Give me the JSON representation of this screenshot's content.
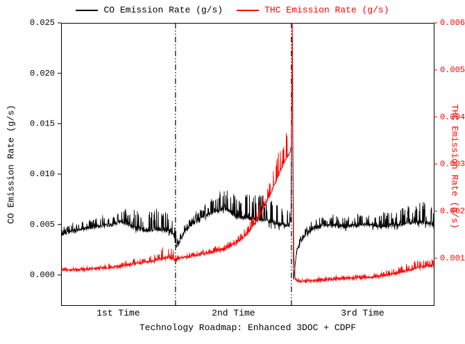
{
  "legend": {
    "items": [
      {
        "label": "CO Emission Rate (g/s)",
        "color": "#000000"
      },
      {
        "label": "THC Emission Rate (g/s)",
        "color": "#ff0000"
      }
    ]
  },
  "chart_data": {
    "type": "line",
    "title": "",
    "xlabel": "Technology Roadmap: Enhanced 3DOC + CDPF",
    "background": "#ffffff",
    "grid": false,
    "legend_position": "top-center",
    "x_axis": {
      "range": [
        0,
        1
      ],
      "segment_labels": [
        "1st Time",
        "2nd Time",
        "3rd Time"
      ],
      "separators_x": [
        0.307,
        0.618
      ],
      "separator_style": "dash-dot-dot"
    },
    "y_left": {
      "title": "CO Emission Rate (g/s)",
      "color": "#000000",
      "range": [
        -0.003,
        0.025
      ],
      "ticks": [
        {
          "value": 0.0,
          "label": "0.000"
        },
        {
          "value": 0.005,
          "label": "0.005"
        },
        {
          "value": 0.01,
          "label": "0.010"
        },
        {
          "value": 0.015,
          "label": "0.015"
        },
        {
          "value": 0.02,
          "label": "0.020"
        },
        {
          "value": 0.025,
          "label": "0.025"
        }
      ]
    },
    "y_right": {
      "title": "THC Emission Rate (g/s)",
      "color": "#ff0000",
      "range": [
        0,
        0.006
      ],
      "ticks": [
        {
          "value": 0.001,
          "label": "0.001"
        },
        {
          "value": 0.002,
          "label": "0.002"
        },
        {
          "value": 0.003,
          "label": "0.003"
        },
        {
          "value": 0.004,
          "label": "0.004"
        },
        {
          "value": 0.005,
          "label": "0.005"
        },
        {
          "value": 0.006,
          "label": "0.006"
        }
      ]
    },
    "series": [
      {
        "name": "CO Emission Rate (g/s)",
        "axis": "left",
        "color": "#000000",
        "line_width": 0.9,
        "seed": 7,
        "samples": 1500,
        "noise_amp": 0.00018,
        "spike_prob": 0.2,
        "down_spike_prob": 0.04,
        "down_spike_frac": 0.35,
        "trend": [
          [
            0,
            0.004
          ],
          [
            0.02,
            0.0042
          ],
          [
            0.05,
            0.0045
          ],
          [
            0.08,
            0.0047
          ],
          [
            0.11,
            0.0049
          ],
          [
            0.14,
            0.005
          ],
          [
            0.16,
            0.0053
          ],
          [
            0.175,
            0.0051
          ],
          [
            0.2,
            0.0046
          ],
          [
            0.23,
            0.0044
          ],
          [
            0.26,
            0.0045
          ],
          [
            0.29,
            0.0044
          ],
          [
            0.302,
            0.004
          ],
          [
            0.31,
            0.0029
          ],
          [
            0.318,
            0.0033
          ],
          [
            0.33,
            0.0042
          ],
          [
            0.35,
            0.005
          ],
          [
            0.37,
            0.0055
          ],
          [
            0.395,
            0.006
          ],
          [
            0.42,
            0.0064
          ],
          [
            0.44,
            0.0066
          ],
          [
            0.455,
            0.0062
          ],
          [
            0.47,
            0.0058
          ],
          [
            0.49,
            0.0057
          ],
          [
            0.52,
            0.0056
          ],
          [
            0.55,
            0.0054
          ],
          [
            0.58,
            0.0051
          ],
          [
            0.6,
            0.0049
          ],
          [
            0.612,
            0.005
          ],
          [
            0.617,
            0.0055
          ],
          [
            0.6205,
            0.024
          ],
          [
            0.6235,
            -0.0008
          ],
          [
            0.627,
            0.0005
          ],
          [
            0.632,
            0.0022
          ],
          [
            0.64,
            0.003
          ],
          [
            0.655,
            0.004
          ],
          [
            0.675,
            0.0046
          ],
          [
            0.7,
            0.0049
          ],
          [
            0.73,
            0.005
          ],
          [
            0.76,
            0.0048
          ],
          [
            0.79,
            0.0049
          ],
          [
            0.82,
            0.005
          ],
          [
            0.85,
            0.0048
          ],
          [
            0.88,
            0.0049
          ],
          [
            0.91,
            0.005
          ],
          [
            0.94,
            0.0052
          ],
          [
            0.965,
            0.0053
          ],
          [
            1,
            0.005
          ]
        ],
        "spike_amp": [
          [
            0,
            0.0006
          ],
          [
            0.05,
            0.0008
          ],
          [
            0.1,
            0.0009
          ],
          [
            0.15,
            0.0011
          ],
          [
            0.19,
            0.0016
          ],
          [
            0.23,
            0.002
          ],
          [
            0.27,
            0.0021
          ],
          [
            0.3,
            0.002
          ],
          [
            0.315,
            0.0006
          ],
          [
            0.34,
            0.0007
          ],
          [
            0.38,
            0.0009
          ],
          [
            0.42,
            0.0016
          ],
          [
            0.46,
            0.002
          ],
          [
            0.5,
            0.0023
          ],
          [
            0.54,
            0.0023
          ],
          [
            0.58,
            0.0021
          ],
          [
            0.61,
            0.0018
          ],
          [
            0.625,
            0.0004
          ],
          [
            0.65,
            0.0006
          ],
          [
            0.7,
            0.0008
          ],
          [
            0.75,
            0.001
          ],
          [
            0.8,
            0.0012
          ],
          [
            0.85,
            0.0013
          ],
          [
            0.9,
            0.0014
          ],
          [
            0.94,
            0.0018
          ],
          [
            0.97,
            0.002
          ],
          [
            1,
            0.0014
          ]
        ]
      },
      {
        "name": "THC Emission Rate (g/s)",
        "axis": "right",
        "color": "#ff0000",
        "line_width": 0.9,
        "seed": 13,
        "samples": 1500,
        "noise_amp": 2.5e-05,
        "spike_prob": 0.2,
        "down_spike_prob": 0.02,
        "down_spike_frac": 0.3,
        "trend": [
          [
            0,
            0.00075
          ],
          [
            0.05,
            0.00075
          ],
          [
            0.1,
            0.00078
          ],
          [
            0.15,
            0.00082
          ],
          [
            0.2,
            0.00088
          ],
          [
            0.25,
            0.00095
          ],
          [
            0.29,
            0.00102
          ],
          [
            0.305,
            0.00096
          ],
          [
            0.32,
            0.001
          ],
          [
            0.36,
            0.00105
          ],
          [
            0.4,
            0.00112
          ],
          [
            0.44,
            0.0012
          ],
          [
            0.47,
            0.00132
          ],
          [
            0.5,
            0.00152
          ],
          [
            0.53,
            0.00185
          ],
          [
            0.555,
            0.00225
          ],
          [
            0.58,
            0.0027
          ],
          [
            0.6,
            0.00305
          ],
          [
            0.614,
            0.00325
          ],
          [
            0.618,
            0.0034
          ],
          [
            0.6205,
            0.0059
          ],
          [
            0.624,
            0.0012
          ],
          [
            0.628,
            0.00055
          ],
          [
            0.64,
            0.0005
          ],
          [
            0.68,
            0.00052
          ],
          [
            0.72,
            0.00055
          ],
          [
            0.76,
            0.00057
          ],
          [
            0.8,
            0.00058
          ],
          [
            0.84,
            0.0006
          ],
          [
            0.88,
            0.00065
          ],
          [
            0.92,
            0.00072
          ],
          [
            0.96,
            0.0008
          ],
          [
            1,
            0.00085
          ]
        ],
        "spike_amp": [
          [
            0,
            3e-05
          ],
          [
            0.1,
            4e-05
          ],
          [
            0.15,
            6e-05
          ],
          [
            0.2,
            0.0001
          ],
          [
            0.24,
            0.00016
          ],
          [
            0.27,
            0.00022
          ],
          [
            0.3,
            0.00024
          ],
          [
            0.315,
            6e-05
          ],
          [
            0.35,
            6e-05
          ],
          [
            0.4,
            8e-05
          ],
          [
            0.45,
            0.0001
          ],
          [
            0.49,
            0.00014
          ],
          [
            0.52,
            0.00022
          ],
          [
            0.55,
            0.00035
          ],
          [
            0.58,
            0.0005
          ],
          [
            0.605,
            0.00055
          ],
          [
            0.618,
            0.0005
          ],
          [
            0.628,
            3e-05
          ],
          [
            0.7,
            4e-05
          ],
          [
            0.8,
            5e-05
          ],
          [
            0.86,
            8e-05
          ],
          [
            0.92,
            0.00014
          ],
          [
            0.96,
            0.00016
          ],
          [
            1,
            0.00012
          ]
        ]
      }
    ]
  }
}
